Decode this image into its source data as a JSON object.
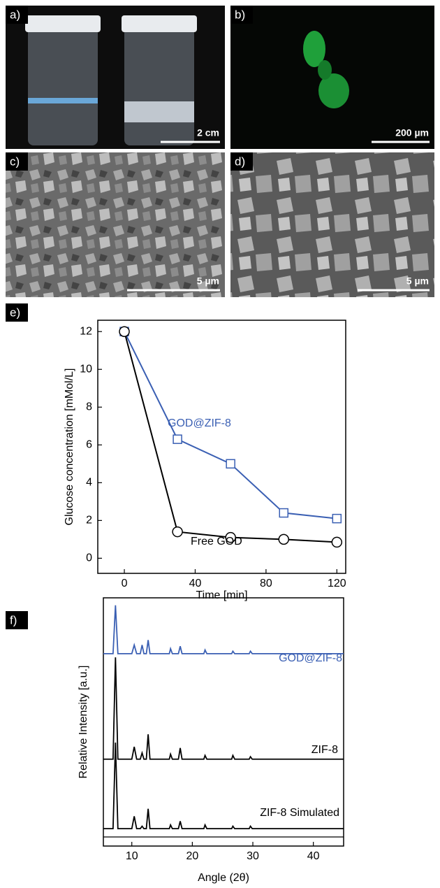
{
  "panels": [
    {
      "label": "a)",
      "scale_bar": "2 cm"
    },
    {
      "label": "b)",
      "scale_bar": "200 µm"
    },
    {
      "label": "c)",
      "scale_bar": "5 µm"
    },
    {
      "label": "d)",
      "scale_bar": "5 µm"
    }
  ],
  "chart_data": [
    {
      "type": "line",
      "panel_label": "e)",
      "x_label": "Time [min]",
      "y_label": "Glucose concentration [mMol/L]",
      "xlim": [
        -15,
        125
      ],
      "xticks": [
        0,
        40,
        80,
        120
      ],
      "ylim": [
        -0.8,
        12.6
      ],
      "yticks": [
        0,
        2,
        4,
        6,
        8,
        10,
        12
      ],
      "series": [
        {
          "name": "GOD@ZIF-8",
          "color": "#3a5fb3",
          "marker": "square",
          "x": [
            0,
            30,
            60,
            90,
            120
          ],
          "values": [
            12,
            6.3,
            5.0,
            2.4,
            2.1
          ]
        },
        {
          "name": "Free GOD",
          "color": "#000000",
          "marker": "circle",
          "x": [
            0,
            30,
            60,
            90,
            120
          ],
          "values": [
            12,
            1.4,
            1.1,
            1.0,
            0.85
          ]
        }
      ]
    },
    {
      "type": "line",
      "panel_label": "f)",
      "x_label": "Angle (2θ)",
      "y_label": "Relative Intensity [a.u.]",
      "xlim": [
        5.3,
        45
      ],
      "xticks": [
        10,
        20,
        30,
        40
      ],
      "ylim": [
        0,
        100
      ],
      "series": [
        {
          "name": "GOD@ZIF-8",
          "color": "#3a5fb3",
          "x": [
            5.3,
            6.9,
            7.3,
            7.7,
            10.0,
            10.4,
            10.8,
            11.4,
            11.7,
            12.0,
            12.4,
            12.7,
            13.0,
            16.2,
            16.4,
            16.7,
            17.7,
            18.0,
            18.3,
            21.9,
            22.1,
            22.4,
            26.5,
            26.7,
            27.0,
            29.4,
            29.6,
            29.9,
            45
          ],
          "values": [
            77.5,
            77.5,
            97,
            77.5,
            77.5,
            81,
            77.5,
            77.5,
            81,
            77.5,
            77.5,
            83,
            77.5,
            77.5,
            79.5,
            77.5,
            77.5,
            80.5,
            77.5,
            77.5,
            79,
            77.5,
            77.5,
            78.5,
            77.5,
            77.5,
            78.5,
            77.5,
            77.5
          ]
        },
        {
          "name": "ZIF-8",
          "color": "#000000",
          "x": [
            5.3,
            6.9,
            7.3,
            7.7,
            10.0,
            10.4,
            10.8,
            11.4,
            11.7,
            12.0,
            12.4,
            12.7,
            13.0,
            16.2,
            16.4,
            16.7,
            17.7,
            18.0,
            18.3,
            21.9,
            22.1,
            22.4,
            26.5,
            26.7,
            27.0,
            29.4,
            29.6,
            29.9,
            45
          ],
          "values": [
            35,
            35,
            76,
            35,
            35,
            40,
            35,
            35,
            37.5,
            35,
            35,
            45,
            35,
            35,
            37,
            35,
            35,
            39.5,
            35,
            35,
            36.5,
            35,
            35,
            36.5,
            35,
            35,
            36,
            35,
            35
          ]
        },
        {
          "name": "ZIF-8 Simulated",
          "color": "#000000",
          "x": [
            5.3,
            6.9,
            7.3,
            7.7,
            10.0,
            10.4,
            10.8,
            11.4,
            11.7,
            12.0,
            12.4,
            12.7,
            13.0,
            16.2,
            16.4,
            16.7,
            17.7,
            18.0,
            18.3,
            21.9,
            22.1,
            22.4,
            26.5,
            26.7,
            27.0,
            29.4,
            29.6,
            29.9,
            45
          ],
          "values": [
            7,
            7,
            41.7,
            7,
            7,
            12,
            7,
            7,
            8,
            7,
            7,
            15,
            7,
            7,
            8.5,
            7,
            7,
            10,
            7,
            7,
            8.5,
            7,
            7,
            8,
            7,
            7,
            8,
            7,
            7
          ]
        }
      ]
    }
  ]
}
